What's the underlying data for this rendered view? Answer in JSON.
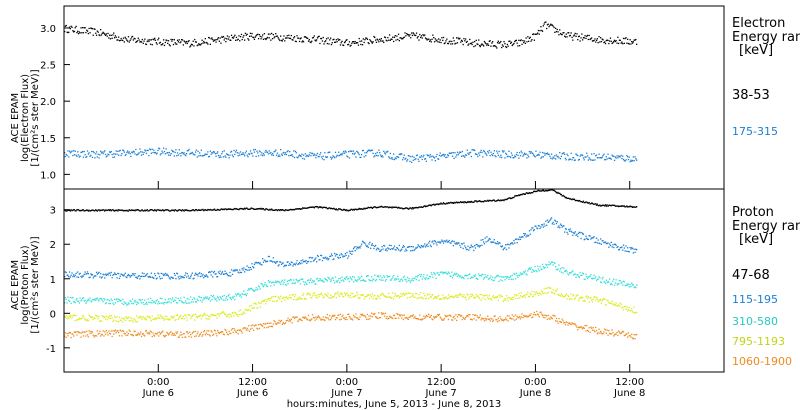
{
  "colors": {
    "black": "#000000",
    "blue": "#1a7fd4",
    "cyan": "#33dfd8",
    "yellow": "#d9ec1c",
    "orange": "#f08a1c"
  },
  "x_axis": {
    "label": "hours:minutes, June  5, 2013 - June  8, 2013",
    "xlim": [
      3.0,
      24.0
    ],
    "ticks": [
      {
        "x": 6.0,
        "time": "0:00",
        "date": "June 6"
      },
      {
        "x": 9.0,
        "time": "12:00",
        "date": "June 6"
      },
      {
        "x": 12.0,
        "time": "0:00",
        "date": "June 7"
      },
      {
        "x": 15.0,
        "time": "12:00",
        "date": "June 7"
      },
      {
        "x": 18.0,
        "time": "0:00",
        "date": "June 8"
      },
      {
        "x": 21.0,
        "time": "12:00",
        "date": "June 8"
      }
    ]
  },
  "chart_data": [
    {
      "type": "scatter",
      "ylabel": [
        "ACE EPAM",
        "log(Electron Flux)",
        "[1/(cm²s ster MeV)]"
      ],
      "ylim": [
        0.8,
        3.3
      ],
      "yticks": [
        "1.0",
        "1.5",
        "2.0",
        "2.5",
        "3.0"
      ],
      "ytick_values": [
        1.0,
        1.5,
        2.0,
        2.5,
        3.0
      ],
      "legend_title": [
        "Electron",
        "Energy ran",
        "[keV]"
      ],
      "series": [
        {
          "name": "38-53",
          "color": "#000000",
          "x": [
            3.0,
            4.0,
            5.0,
            6.0,
            7.0,
            8.0,
            9.0,
            10.0,
            11.0,
            12.0,
            13.0,
            14.0,
            15.0,
            16.0,
            17.0,
            17.5,
            18.0,
            18.3,
            19.0,
            20.0,
            21.2
          ],
          "y": [
            3.0,
            2.95,
            2.85,
            2.82,
            2.8,
            2.85,
            2.9,
            2.88,
            2.85,
            2.8,
            2.85,
            2.9,
            2.85,
            2.8,
            2.78,
            2.8,
            2.9,
            3.05,
            2.9,
            2.85,
            2.82
          ]
        },
        {
          "name": "175-315",
          "color": "#1a7fd4",
          "x": [
            3.0,
            4.0,
            5.0,
            6.0,
            7.0,
            8.0,
            9.0,
            10.0,
            11.0,
            12.0,
            13.0,
            14.0,
            15.0,
            16.0,
            17.0,
            18.0,
            19.0,
            20.0,
            21.2
          ],
          "y": [
            1.3,
            1.28,
            1.3,
            1.32,
            1.3,
            1.28,
            1.3,
            1.3,
            1.25,
            1.28,
            1.3,
            1.22,
            1.25,
            1.3,
            1.28,
            1.28,
            1.25,
            1.25,
            1.22
          ]
        }
      ]
    },
    {
      "type": "scatter",
      "ylabel": [
        "ACE EPAM",
        "log(Proton Flux)",
        "[1/(cm²s ster MeV)]"
      ],
      "ylim": [
        -1.7,
        3.6
      ],
      "yticks": [
        "-1",
        "0",
        "1",
        "2",
        "3"
      ],
      "ytick_values": [
        -1,
        0,
        1,
        2,
        3
      ],
      "legend_title": [
        "Proton",
        "Energy ran",
        "[keV]"
      ],
      "series": [
        {
          "name": "47-68",
          "color": "#000000",
          "x": [
            3.0,
            5.0,
            7.0,
            9.0,
            10.0,
            11.0,
            12.0,
            13.0,
            14.0,
            15.0,
            16.0,
            17.0,
            17.5,
            18.0,
            18.5,
            19.0,
            20.0,
            21.2
          ],
          "y": [
            3.0,
            3.0,
            3.0,
            3.05,
            3.0,
            3.1,
            3.0,
            3.1,
            3.05,
            3.2,
            3.25,
            3.3,
            3.45,
            3.55,
            3.6,
            3.35,
            3.15,
            3.1
          ]
        },
        {
          "name": "115-195",
          "color": "#1a7fd4",
          "x": [
            3.0,
            5.0,
            7.0,
            8.5,
            9.5,
            10.0,
            11.0,
            12.0,
            12.5,
            13.0,
            14.0,
            15.0,
            16.0,
            16.5,
            17.0,
            18.0,
            18.5,
            19.0,
            20.0,
            21.2
          ],
          "y": [
            1.15,
            1.1,
            1.1,
            1.2,
            1.6,
            1.4,
            1.6,
            1.7,
            2.05,
            1.9,
            1.9,
            2.1,
            1.9,
            2.2,
            1.9,
            2.5,
            2.7,
            2.4,
            2.1,
            1.8
          ]
        },
        {
          "name": "310-580",
          "color": "#33dfd8",
          "x": [
            3.0,
            5.0,
            7.0,
            8.5,
            9.5,
            10.0,
            11.0,
            12.0,
            13.0,
            14.0,
            15.0,
            16.0,
            17.0,
            18.0,
            18.5,
            19.0,
            20.0,
            21.2
          ],
          "y": [
            0.4,
            0.35,
            0.4,
            0.5,
            0.9,
            0.9,
            0.95,
            1.0,
            1.05,
            1.0,
            1.15,
            1.1,
            1.0,
            1.3,
            1.45,
            1.2,
            1.0,
            0.8
          ]
        },
        {
          "name": "795-1193",
          "color": "#d9ec1c",
          "x": [
            3.0,
            5.0,
            7.0,
            8.5,
            9.5,
            10.0,
            11.0,
            12.0,
            13.0,
            14.0,
            15.0,
            16.0,
            17.0,
            18.0,
            18.5,
            19.0,
            20.0,
            21.2
          ],
          "y": [
            -0.1,
            -0.15,
            -0.1,
            0.0,
            0.4,
            0.45,
            0.55,
            0.55,
            0.5,
            0.55,
            0.5,
            0.5,
            0.45,
            0.6,
            0.7,
            0.5,
            0.4,
            0.1
          ]
        },
        {
          "name": "1060-1900",
          "color": "#f08a1c",
          "x": [
            3.0,
            5.0,
            7.0,
            8.5,
            9.5,
            10.0,
            11.0,
            12.0,
            13.0,
            14.0,
            15.0,
            16.0,
            17.0,
            18.0,
            18.5,
            19.0,
            20.0,
            21.2
          ],
          "y": [
            -0.6,
            -0.55,
            -0.6,
            -0.5,
            -0.3,
            -0.2,
            -0.1,
            -0.1,
            -0.05,
            -0.1,
            -0.1,
            -0.1,
            -0.15,
            0.0,
            -0.1,
            -0.3,
            -0.5,
            -0.65
          ]
        }
      ]
    }
  ]
}
